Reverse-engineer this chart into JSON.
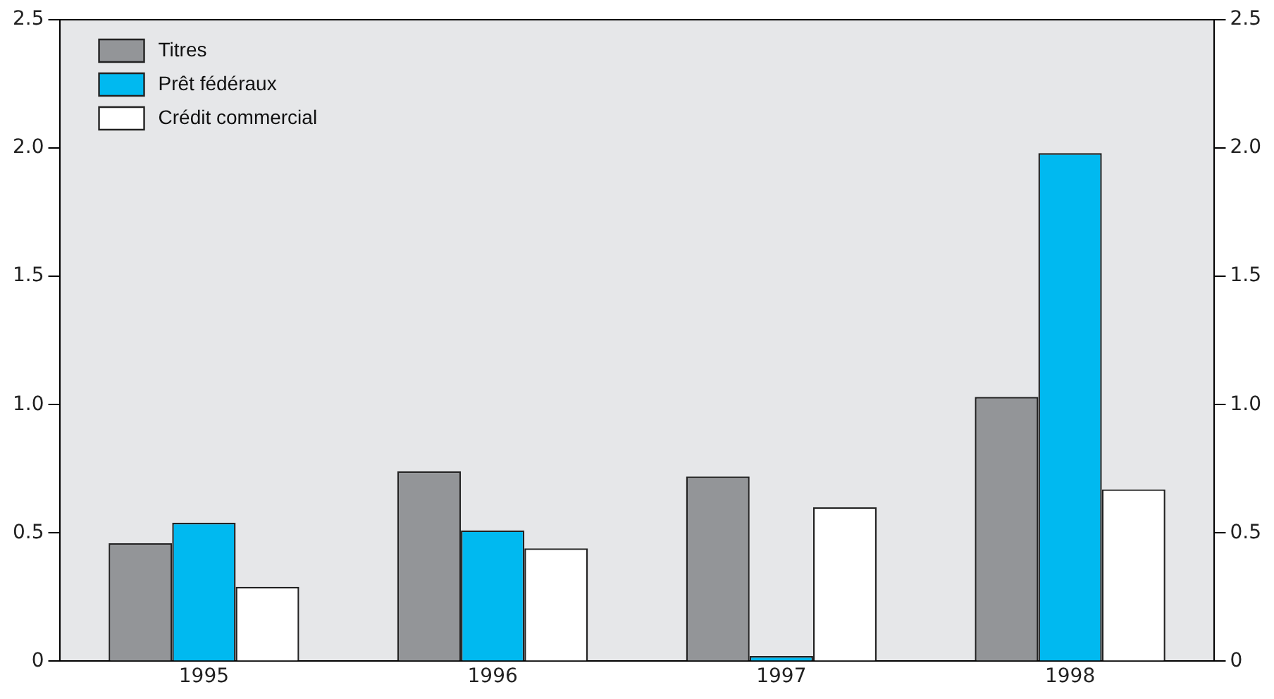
{
  "chart_data": {
    "type": "bar",
    "categories": [
      "1995",
      "1996",
      "1997",
      "1998"
    ],
    "series": [
      {
        "name": "Titres",
        "color": "#939598",
        "values": [
          0.46,
          0.74,
          0.72,
          1.03
        ]
      },
      {
        "name": "Prêt fédéraux",
        "color": "#00b9f0",
        "values": [
          0.54,
          0.51,
          0.02,
          1.98
        ]
      },
      {
        "name": "Crédit commercial",
        "color": "#ffffff",
        "values": [
          0.29,
          0.44,
          0.6,
          0.67
        ]
      }
    ],
    "ylim": [
      0,
      2.5
    ],
    "yticks": [
      0,
      {
        "value": 0.5,
        "label": "0.5"
      },
      {
        "value": 1,
        "label": "1.0"
      },
      {
        "value": 1.5,
        "label": "1.5"
      },
      {
        "value": 2,
        "label": "2.0"
      },
      {
        "value": 2.5,
        "label": "2.5"
      }
    ],
    "y2lim": [
      0,
      2.5
    ],
    "y2ticks": [
      0,
      {
        "value": 0.5,
        "label": "0.5"
      },
      {
        "value": 1,
        "label": "1.0"
      },
      {
        "value": 1.5,
        "label": "1.5"
      },
      {
        "value": 2,
        "label": "2.0"
      },
      {
        "value": 2.5,
        "label": "2.5"
      }
    ],
    "grid": false,
    "legend": "top left"
  }
}
